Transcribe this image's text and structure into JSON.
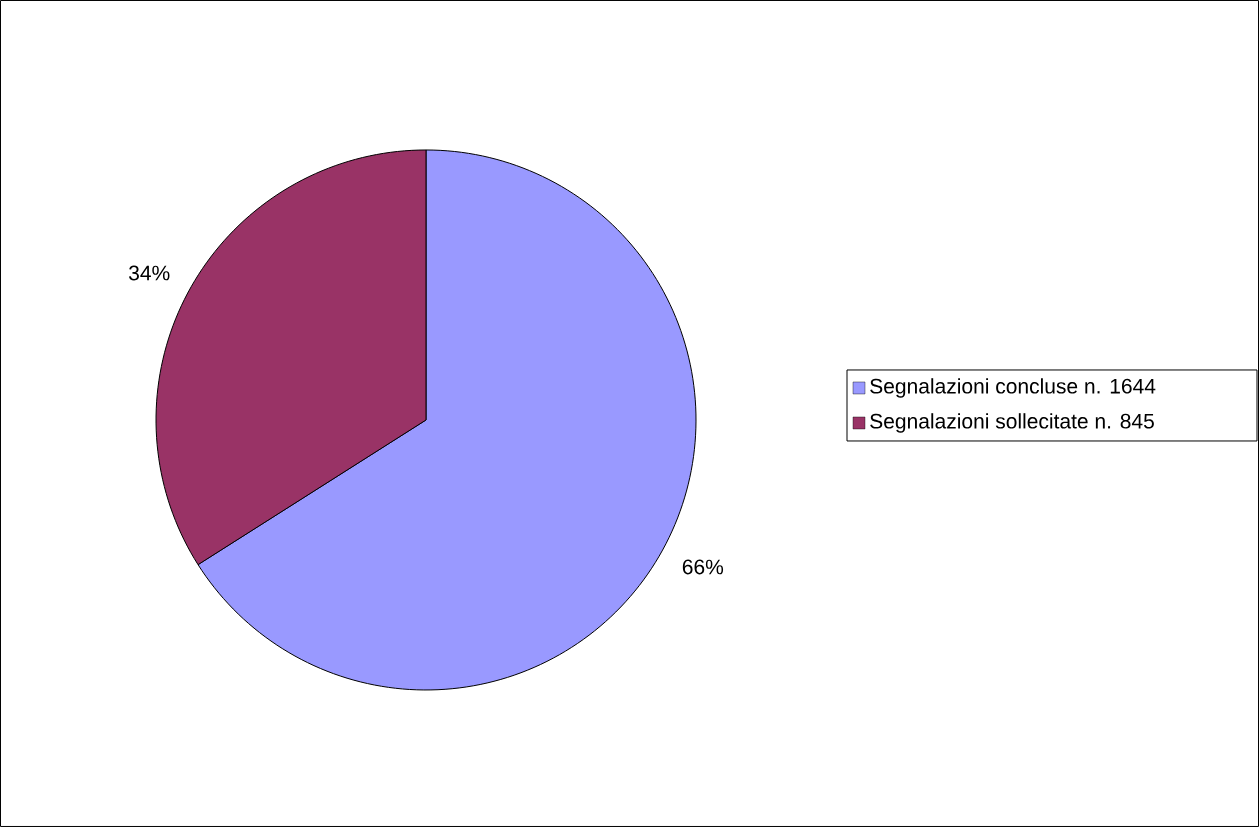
{
  "chart_data": {
    "type": "pie",
    "categories": [
      "Segnalazioni concluse n. 1644",
      "Segnalazioni sollecitate  n. 845"
    ],
    "values": [
      66,
      34
    ],
    "colors": [
      "#9999ff",
      "#993366"
    ],
    "value_labels": [
      "66%",
      "34%"
    ],
    "legend": "right"
  }
}
